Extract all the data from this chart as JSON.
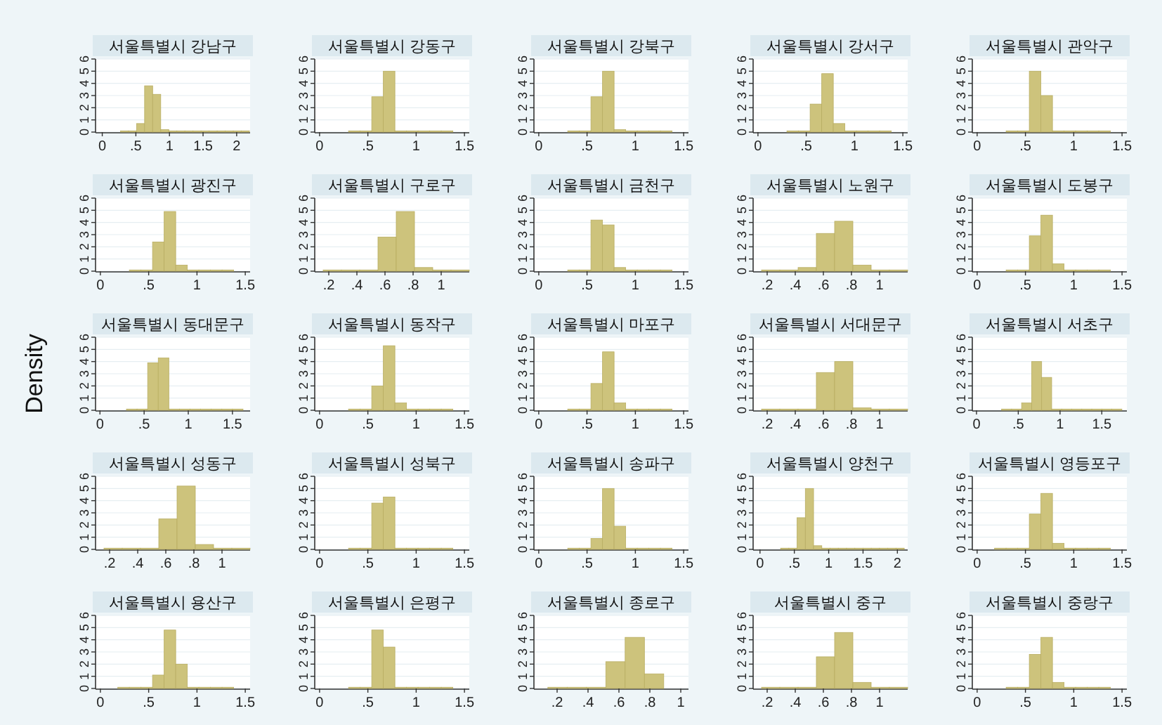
{
  "chart_data": [
    {
      "type": "histogram",
      "title": "서울특별시 강남구",
      "color": "#cdc37c",
      "xlim": [
        -0.1,
        2.2
      ],
      "xticks": [
        0,
        {
          "value": 0.5,
          "label": ".5"
        },
        1,
        1.5,
        2
      ],
      "ylim": [
        0,
        6
      ],
      "yticks": [
        0,
        1,
        2,
        3,
        4,
        5,
        6
      ],
      "grid": "y",
      "bins": [
        0.27,
        0.39,
        0.51,
        0.63,
        0.75,
        0.87,
        0.99,
        1.11,
        1.23,
        1.35,
        1.47,
        1.59,
        1.71,
        1.83,
        1.95,
        2.07,
        2.19
      ],
      "values": [
        0.1,
        0.1,
        0.7,
        3.8,
        3.1,
        0.2,
        0.1,
        0.1,
        0.1,
        0.1,
        0.1,
        0.1,
        0.1,
        0.1,
        0.1,
        0.1
      ]
    },
    {
      "type": "histogram",
      "title": "서울특별시 강동구",
      "color": "#cdc37c",
      "xlim": [
        -0.05,
        1.55
      ],
      "xticks": [
        0,
        {
          "value": 0.5,
          "label": ".5"
        },
        1,
        1.5
      ],
      "ylim": [
        0,
        6
      ],
      "yticks": [
        0,
        1,
        2,
        3,
        4,
        5,
        6
      ],
      "grid": "y",
      "bins": [
        0.3,
        0.42,
        0.54,
        0.66,
        0.78,
        0.9,
        1.02,
        1.14,
        1.26,
        1.38
      ],
      "values": [
        0.1,
        0.1,
        2.9,
        5.0,
        0.1,
        0.1,
        0.1,
        0.1,
        0.1
      ]
    },
    {
      "type": "histogram",
      "title": "서울특별시 강북구",
      "color": "#cdc37c",
      "xlim": [
        -0.05,
        1.55
      ],
      "xticks": [
        0,
        {
          "value": 0.5,
          "label": ".5"
        },
        1,
        1.5
      ],
      "ylim": [
        0,
        6
      ],
      "yticks": [
        0,
        1,
        2,
        3,
        4,
        5,
        6
      ],
      "grid": "y",
      "bins": [
        0.3,
        0.42,
        0.54,
        0.66,
        0.78,
        0.9,
        1.02,
        1.14,
        1.26,
        1.38
      ],
      "values": [
        0.1,
        0.1,
        2.9,
        5.0,
        0.2,
        0.1,
        0.1,
        0.1,
        0.1
      ]
    },
    {
      "type": "histogram",
      "title": "서울특별시 강서구",
      "color": "#cdc37c",
      "xlim": [
        -0.05,
        1.55
      ],
      "xticks": [
        0,
        {
          "value": 0.5,
          "label": ".5"
        },
        1,
        1.5
      ],
      "ylim": [
        0,
        6
      ],
      "yticks": [
        0,
        1,
        2,
        3,
        4,
        5,
        6
      ],
      "grid": "y",
      "bins": [
        0.3,
        0.42,
        0.54,
        0.66,
        0.78,
        0.9,
        1.02,
        1.14,
        1.26,
        1.38
      ],
      "values": [
        0.1,
        0.1,
        2.3,
        4.8,
        0.7,
        0.1,
        0.1,
        0.1,
        0.1
      ]
    },
    {
      "type": "histogram",
      "title": "서울특별시 관악구",
      "color": "#cdc37c",
      "xlim": [
        -0.05,
        1.55
      ],
      "xticks": [
        0,
        {
          "value": 0.5,
          "label": ".5"
        },
        1,
        1.5
      ],
      "ylim": [
        0,
        6
      ],
      "yticks": [
        0,
        1,
        2,
        3,
        4,
        5,
        6
      ],
      "grid": "y",
      "bins": [
        0.3,
        0.42,
        0.54,
        0.66,
        0.78,
        0.9,
        1.02,
        1.14,
        1.26,
        1.38
      ],
      "values": [
        0.1,
        0.1,
        5.0,
        3.0,
        0.1,
        0.1,
        0.1,
        0.1,
        0.1
      ]
    },
    {
      "type": "histogram",
      "title": "서울특별시 광진구",
      "color": "#cdc37c",
      "xlim": [
        -0.05,
        1.55
      ],
      "xticks": [
        0,
        {
          "value": 0.5,
          "label": ".5"
        },
        1,
        1.5
      ],
      "ylim": [
        0,
        6
      ],
      "yticks": [
        0,
        1,
        2,
        3,
        4,
        5,
        6
      ],
      "grid": "y",
      "bins": [
        0.3,
        0.42,
        0.54,
        0.66,
        0.78,
        0.9,
        1.02,
        1.14,
        1.26,
        1.38
      ],
      "values": [
        0.1,
        0.1,
        2.4,
        4.9,
        0.5,
        0.1,
        0.1,
        0.1,
        0.1
      ]
    },
    {
      "type": "histogram",
      "title": "서울특별시 구로구",
      "color": "#cdc37c",
      "xlim": [
        0.1,
        1.2
      ],
      "xticks": [
        {
          "value": 0.2,
          "label": ".2"
        },
        {
          "value": 0.4,
          "label": ".4"
        },
        {
          "value": 0.6,
          "label": ".6"
        },
        {
          "value": 0.8,
          "label": ".8"
        },
        1
      ],
      "ylim": [
        0,
        6
      ],
      "yticks": [
        0,
        1,
        2,
        3,
        4,
        5,
        6
      ],
      "grid": "y",
      "bins": [
        0.16,
        0.29,
        0.42,
        0.55,
        0.68,
        0.81,
        0.94,
        1.07,
        1.2
      ],
      "values": [
        0.1,
        0.1,
        0.1,
        2.8,
        4.9,
        0.3,
        0.1,
        0.1
      ]
    },
    {
      "type": "histogram",
      "title": "서울특별시 금천구",
      "color": "#cdc37c",
      "xlim": [
        -0.05,
        1.55
      ],
      "xticks": [
        0,
        {
          "value": 0.5,
          "label": ".5"
        },
        1,
        1.5
      ],
      "ylim": [
        0,
        6
      ],
      "yticks": [
        0,
        1,
        2,
        3,
        4,
        5,
        6
      ],
      "grid": "y",
      "bins": [
        0.3,
        0.42,
        0.54,
        0.66,
        0.78,
        0.9,
        1.02,
        1.14,
        1.26,
        1.38
      ],
      "values": [
        0.1,
        0.1,
        4.2,
        3.8,
        0.3,
        0.1,
        0.1,
        0.1,
        0.1
      ]
    },
    {
      "type": "histogram",
      "title": "서울특별시 노원구",
      "color": "#cdc37c",
      "xlim": [
        0.1,
        1.2
      ],
      "xticks": [
        {
          "value": 0.2,
          "label": ".2"
        },
        {
          "value": 0.4,
          "label": ".4"
        },
        {
          "value": 0.6,
          "label": ".6"
        },
        {
          "value": 0.8,
          "label": ".8"
        },
        1
      ],
      "ylim": [
        0,
        6
      ],
      "yticks": [
        0,
        1,
        2,
        3,
        4,
        5,
        6
      ],
      "grid": "y",
      "bins": [
        0.16,
        0.29,
        0.42,
        0.55,
        0.68,
        0.81,
        0.94,
        1.07,
        1.2
      ],
      "values": [
        0.1,
        0.1,
        0.3,
        3.1,
        4.1,
        0.5,
        0.1,
        0.1
      ]
    },
    {
      "type": "histogram",
      "title": "서울특별시 도봉구",
      "color": "#cdc37c",
      "xlim": [
        -0.05,
        1.55
      ],
      "xticks": [
        0,
        {
          "value": 0.5,
          "label": ".5"
        },
        1,
        1.5
      ],
      "ylim": [
        0,
        6
      ],
      "yticks": [
        0,
        1,
        2,
        3,
        4,
        5,
        6
      ],
      "grid": "y",
      "bins": [
        0.3,
        0.42,
        0.54,
        0.66,
        0.78,
        0.9,
        1.02,
        1.14,
        1.26,
        1.38
      ],
      "values": [
        0.1,
        0.1,
        2.9,
        4.6,
        0.6,
        0.1,
        0.1,
        0.1,
        0.1
      ]
    },
    {
      "type": "histogram",
      "title": "서울특별시 동대문구",
      "ylabel": "Density",
      "color": "#cdc37c",
      "xlim": [
        -0.05,
        1.7
      ],
      "xticks": [
        0,
        {
          "value": 0.5,
          "label": ".5"
        },
        1,
        1.5
      ],
      "ylim": [
        0,
        6
      ],
      "yticks": [
        0,
        1,
        2,
        3,
        4,
        5,
        6
      ],
      "grid": "y",
      "bins": [
        0.3,
        0.42,
        0.54,
        0.66,
        0.78,
        0.9,
        1.02,
        1.14,
        1.26,
        1.38,
        1.5,
        1.62
      ],
      "values": [
        0.1,
        0.1,
        3.9,
        4.3,
        0.1,
        0.1,
        0.1,
        0.1,
        0.1,
        0.1,
        0.1
      ]
    },
    {
      "type": "histogram",
      "title": "서울특별시 동작구",
      "color": "#cdc37c",
      "xlim": [
        -0.05,
        1.55
      ],
      "xticks": [
        0,
        {
          "value": 0.5,
          "label": ".5"
        },
        1,
        1.5
      ],
      "ylim": [
        0,
        6
      ],
      "yticks": [
        0,
        1,
        2,
        3,
        4,
        5,
        6
      ],
      "grid": "y",
      "bins": [
        0.3,
        0.42,
        0.54,
        0.66,
        0.78,
        0.9,
        1.02,
        1.14,
        1.26,
        1.38
      ],
      "values": [
        0.1,
        0.1,
        2.0,
        5.3,
        0.6,
        0.1,
        0.1,
        0.1,
        0.1
      ]
    },
    {
      "type": "histogram",
      "title": "서울특별시 마포구",
      "color": "#cdc37c",
      "xlim": [
        -0.05,
        1.55
      ],
      "xticks": [
        0,
        {
          "value": 0.5,
          "label": ".5"
        },
        1,
        1.5
      ],
      "ylim": [
        0,
        6
      ],
      "yticks": [
        0,
        1,
        2,
        3,
        4,
        5,
        6
      ],
      "grid": "y",
      "bins": [
        0.3,
        0.42,
        0.54,
        0.66,
        0.78,
        0.9,
        1.02,
        1.14,
        1.26,
        1.38
      ],
      "values": [
        0.1,
        0.1,
        2.2,
        4.8,
        0.6,
        0.1,
        0.1,
        0.1,
        0.1
      ]
    },
    {
      "type": "histogram",
      "title": "서울특별시 서대문구",
      "color": "#cdc37c",
      "xlim": [
        0.1,
        1.2
      ],
      "xticks": [
        {
          "value": 0.2,
          "label": ".2"
        },
        {
          "value": 0.4,
          "label": ".4"
        },
        {
          "value": 0.6,
          "label": ".6"
        },
        {
          "value": 0.8,
          "label": ".8"
        },
        1
      ],
      "ylim": [
        0,
        6
      ],
      "yticks": [
        0,
        1,
        2,
        3,
        4,
        5,
        6
      ],
      "grid": "y",
      "bins": [
        0.16,
        0.29,
        0.42,
        0.55,
        0.68,
        0.81,
        0.94,
        1.07,
        1.2
      ],
      "values": [
        0.1,
        0.1,
        0.1,
        3.1,
        4.0,
        0.2,
        0.1,
        0.1
      ]
    },
    {
      "type": "histogram",
      "title": "서울특별시 서초구",
      "color": "#cdc37c",
      "xlim": [
        -0.05,
        1.8
      ],
      "xticks": [
        0,
        {
          "value": 0.5,
          "label": ".5"
        },
        1,
        1.5
      ],
      "ylim": [
        0,
        6
      ],
      "yticks": [
        0,
        1,
        2,
        3,
        4,
        5,
        6
      ],
      "grid": "y",
      "bins": [
        0.3,
        0.42,
        0.54,
        0.66,
        0.78,
        0.9,
        1.02,
        1.14,
        1.26,
        1.38,
        1.5,
        1.62,
        1.74
      ],
      "values": [
        0.1,
        0.1,
        0.6,
        4.0,
        2.7,
        0.1,
        0.1,
        0.1,
        0.1,
        0.1,
        0.1,
        0.1
      ]
    },
    {
      "type": "histogram",
      "title": "서울특별시 성동구",
      "color": "#cdc37c",
      "xlim": [
        0.1,
        1.2
      ],
      "xticks": [
        {
          "value": 0.2,
          "label": ".2"
        },
        {
          "value": 0.4,
          "label": ".4"
        },
        {
          "value": 0.6,
          "label": ".6"
        },
        {
          "value": 0.8,
          "label": ".8"
        },
        1
      ],
      "ylim": [
        0,
        6
      ],
      "yticks": [
        0,
        1,
        2,
        3,
        4,
        5,
        6
      ],
      "grid": "y",
      "bins": [
        0.16,
        0.29,
        0.42,
        0.55,
        0.68,
        0.81,
        0.94,
        1.07,
        1.2
      ],
      "values": [
        0.1,
        0.1,
        0.1,
        2.5,
        5.2,
        0.4,
        0.1,
        0.1
      ]
    },
    {
      "type": "histogram",
      "title": "서울특별시 성북구",
      "color": "#cdc37c",
      "xlim": [
        -0.05,
        1.55
      ],
      "xticks": [
        0,
        {
          "value": 0.5,
          "label": ".5"
        },
        1,
        1.5
      ],
      "ylim": [
        0,
        6
      ],
      "yticks": [
        0,
        1,
        2,
        3,
        4,
        5,
        6
      ],
      "grid": "y",
      "bins": [
        0.3,
        0.42,
        0.54,
        0.66,
        0.78,
        0.9,
        1.02,
        1.14,
        1.26,
        1.38
      ],
      "values": [
        0.1,
        0.1,
        3.8,
        4.3,
        0.1,
        0.1,
        0.1,
        0.1,
        0.1
      ]
    },
    {
      "type": "histogram",
      "title": "서울특별시 송파구",
      "color": "#cdc37c",
      "xlim": [
        -0.05,
        1.55
      ],
      "xticks": [
        0,
        {
          "value": 0.5,
          "label": ".5"
        },
        1,
        1.5
      ],
      "ylim": [
        0,
        6
      ],
      "yticks": [
        0,
        1,
        2,
        3,
        4,
        5,
        6
      ],
      "grid": "y",
      "bins": [
        0.3,
        0.42,
        0.54,
        0.66,
        0.78,
        0.9,
        1.02,
        1.14,
        1.26,
        1.38
      ],
      "values": [
        0.1,
        0.1,
        0.9,
        5.0,
        1.9,
        0.1,
        0.1,
        0.1,
        0.1
      ]
    },
    {
      "type": "histogram",
      "title": "서울특별시 양천구",
      "color": "#cdc37c",
      "xlim": [
        -0.1,
        2.15
      ],
      "xticks": [
        0,
        {
          "value": 0.5,
          "label": ".5"
        },
        1,
        1.5,
        2
      ],
      "ylim": [
        0,
        6
      ],
      "yticks": [
        0,
        1,
        2,
        3,
        4,
        5,
        6
      ],
      "grid": "y",
      "bins": [
        0.3,
        0.42,
        0.54,
        0.66,
        0.78,
        0.9,
        1.02,
        1.14,
        1.26,
        1.38,
        1.5,
        1.62,
        1.74,
        1.86,
        1.98,
        2.1
      ],
      "values": [
        0.1,
        0.1,
        2.6,
        5.0,
        0.3,
        0.1,
        0.1,
        0.1,
        0.1,
        0.1,
        0.1,
        0.1,
        0.1,
        0.1,
        0.1
      ]
    },
    {
      "type": "histogram",
      "title": "서울특별시 영등포구",
      "color": "#cdc37c",
      "xlim": [
        -0.05,
        1.55
      ],
      "xticks": [
        0,
        {
          "value": 0.5,
          "label": ".5"
        },
        1,
        1.5
      ],
      "ylim": [
        0,
        6
      ],
      "yticks": [
        0,
        1,
        2,
        3,
        4,
        5,
        6
      ],
      "grid": "y",
      "bins": [
        0.18,
        0.3,
        0.42,
        0.54,
        0.66,
        0.78,
        0.9,
        1.02,
        1.14,
        1.26,
        1.38
      ],
      "values": [
        0.1,
        0.1,
        0.1,
        2.9,
        4.6,
        0.5,
        0.1,
        0.1,
        0.1,
        0.1
      ]
    },
    {
      "type": "histogram",
      "title": "서울특별시 용산구",
      "color": "#cdc37c",
      "xlim": [
        -0.05,
        1.55
      ],
      "xticks": [
        0,
        {
          "value": 0.5,
          "label": ".5"
        },
        1,
        1.5
      ],
      "ylim": [
        0,
        6
      ],
      "yticks": [
        0,
        1,
        2,
        3,
        4,
        5,
        6
      ],
      "grid": "y",
      "bins": [
        0.18,
        0.3,
        0.42,
        0.54,
        0.66,
        0.78,
        0.9,
        1.02,
        1.14,
        1.26,
        1.38
      ],
      "values": [
        0.1,
        0.1,
        0.1,
        1.1,
        4.8,
        2.0,
        0.1,
        0.1,
        0.1,
        0.1
      ]
    },
    {
      "type": "histogram",
      "title": "서울특별시 은평구",
      "color": "#cdc37c",
      "xlim": [
        -0.05,
        1.55
      ],
      "xticks": [
        0,
        {
          "value": 0.5,
          "label": ".5"
        },
        1,
        1.5
      ],
      "ylim": [
        0,
        6
      ],
      "yticks": [
        0,
        1,
        2,
        3,
        4,
        5,
        6
      ],
      "grid": "y",
      "bins": [
        0.3,
        0.42,
        0.54,
        0.66,
        0.78,
        0.9,
        1.02,
        1.14,
        1.26,
        1.38
      ],
      "values": [
        0.1,
        0.1,
        4.8,
        3.4,
        0.1,
        0.1,
        0.1,
        0.1,
        0.1
      ]
    },
    {
      "type": "histogram",
      "title": "서울특별시 종로구",
      "color": "#cdc37c",
      "xlim": [
        0.05,
        1.05
      ],
      "xticks": [
        {
          "value": 0.2,
          "label": ".2"
        },
        {
          "value": 0.4,
          "label": ".4"
        },
        {
          "value": 0.6,
          "label": ".6"
        },
        {
          "value": 0.8,
          "label": ".8"
        },
        1
      ],
      "ylim": [
        0,
        6
      ],
      "yticks": [
        0,
        1,
        2,
        3,
        4,
        5,
        6
      ],
      "grid": "y",
      "bins": [
        0.14,
        0.265,
        0.39,
        0.515,
        0.64,
        0.765,
        0.89
      ],
      "values": [
        0.1,
        0.1,
        0.1,
        2.2,
        4.2,
        1.2
      ]
    },
    {
      "type": "histogram",
      "title": "서울특별시 중구",
      "color": "#cdc37c",
      "xlim": [
        0.1,
        1.2
      ],
      "xticks": [
        {
          "value": 0.2,
          "label": ".2"
        },
        {
          "value": 0.4,
          "label": ".4"
        },
        {
          "value": 0.6,
          "label": ".6"
        },
        {
          "value": 0.8,
          "label": ".8"
        },
        1
      ],
      "ylim": [
        0,
        6
      ],
      "yticks": [
        0,
        1,
        2,
        3,
        4,
        5,
        6
      ],
      "grid": "y",
      "bins": [
        0.16,
        0.29,
        0.42,
        0.55,
        0.68,
        0.81,
        0.94,
        1.07,
        1.2
      ],
      "values": [
        0.1,
        0.1,
        0.1,
        2.6,
        4.6,
        0.5,
        0.1,
        0.1
      ]
    },
    {
      "type": "histogram",
      "title": "서울특별시 중랑구",
      "color": "#cdc37c",
      "xlim": [
        -0.05,
        1.55
      ],
      "xticks": [
        0,
        {
          "value": 0.5,
          "label": ".5"
        },
        1,
        1.5
      ],
      "ylim": [
        0,
        6
      ],
      "yticks": [
        0,
        1,
        2,
        3,
        4,
        5,
        6
      ],
      "grid": "y",
      "bins": [
        0.3,
        0.42,
        0.54,
        0.66,
        0.78,
        0.9,
        1.02,
        1.14,
        1.26,
        1.38
      ],
      "values": [
        0.1,
        0.1,
        2.8,
        4.2,
        0.5,
        0.1,
        0.1,
        0.1,
        0.1
      ]
    }
  ]
}
